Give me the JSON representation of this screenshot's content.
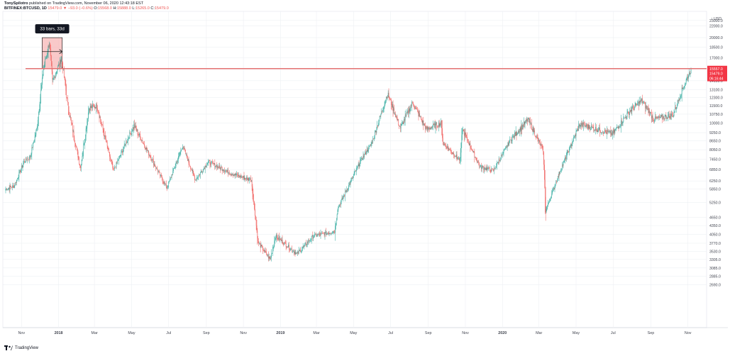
{
  "header": {
    "author": "TonySpilotro",
    "published": "published on TradingView.com, November 06, 2020 12:43:18 EST",
    "symbol": "BITFINEX:BTCUSD, 1D",
    "last": "15479.0",
    "change": "▼ −93.0 (−0.6%)",
    "o_label": "O:",
    "o_value": "15568.0",
    "h_label": "H:",
    "h_value": "15888.0",
    "l_label": "L:",
    "l_value": "15265.0",
    "c_label": "C:",
    "c_value": "15479.0"
  },
  "footer": {
    "brand": "TradingView"
  },
  "colors": {
    "up": "#26a69a",
    "down": "#ef5350",
    "grid": "#eef0f3",
    "resistance": "#e57373",
    "box_fill": "#f7b7b7",
    "box_border": "#222222",
    "tooltip_bg": "#131722",
    "badge_red": "#f23645"
  },
  "chart_data": {
    "type": "candlestick",
    "symbol": "BITFINEX:BTCUSD",
    "interval": "1D",
    "currency": "USD",
    "ylim": [
      1900,
      24200
    ],
    "y_ticks": [
      "23000.0",
      "22000.0",
      "20000.0",
      "18500.0",
      "17000.0",
      "15500.0",
      "14100.0",
      "13100.0",
      "12300.0",
      "11500.0",
      "10750.0",
      "10000.0",
      "9250.0",
      "8650.0",
      "8050.0",
      "7450.0",
      "6850.0",
      "6250.0",
      "5850.0",
      "5250.0",
      "4650.0",
      "4350.0",
      "4050.0",
      "3770.0",
      "3530.0",
      "3305.0",
      "3085.0",
      "2885.0",
      "2690.0"
    ],
    "x_labels": [
      {
        "label": "Nov",
        "date": "2017-11-01",
        "bold": false
      },
      {
        "label": "2018",
        "date": "2018-01-01",
        "bold": true
      },
      {
        "label": "Mar",
        "date": "2018-03-01",
        "bold": false
      },
      {
        "label": "May",
        "date": "2018-05-01",
        "bold": false
      },
      {
        "label": "Jul",
        "date": "2018-07-01",
        "bold": false
      },
      {
        "label": "Sep",
        "date": "2018-09-01",
        "bold": false
      },
      {
        "label": "Nov",
        "date": "2018-11-01",
        "bold": false
      },
      {
        "label": "2019",
        "date": "2019-01-01",
        "bold": true
      },
      {
        "label": "Mar",
        "date": "2019-03-01",
        "bold": false
      },
      {
        "label": "May",
        "date": "2019-05-01",
        "bold": false
      },
      {
        "label": "Jul",
        "date": "2019-07-01",
        "bold": false
      },
      {
        "label": "Sep",
        "date": "2019-09-01",
        "bold": false
      },
      {
        "label": "Nov",
        "date": "2019-11-01",
        "bold": false
      },
      {
        "label": "2020",
        "date": "2020-01-01",
        "bold": true
      },
      {
        "label": "Mar",
        "date": "2020-03-01",
        "bold": false
      },
      {
        "label": "May",
        "date": "2020-05-01",
        "bold": false
      },
      {
        "label": "Jul",
        "date": "2020-07-01",
        "bold": false
      },
      {
        "label": "Sep",
        "date": "2020-09-01",
        "bold": false
      },
      {
        "label": "Nov",
        "date": "2020-11-01",
        "bold": false
      }
    ],
    "price_path": [
      {
        "date": "2017-10-06",
        "price": 5850
      },
      {
        "date": "2017-10-20",
        "price": 6000
      },
      {
        "date": "2017-11-05",
        "price": 7300
      },
      {
        "date": "2017-11-15",
        "price": 7600
      },
      {
        "date": "2017-11-26",
        "price": 9500
      },
      {
        "date": "2017-12-07",
        "price": 15500
      },
      {
        "date": "2017-12-17",
        "price": 19300
      },
      {
        "date": "2017-12-22",
        "price": 14000
      },
      {
        "date": "2018-01-06",
        "price": 17000
      },
      {
        "date": "2018-01-17",
        "price": 11200
      },
      {
        "date": "2018-02-06",
        "price": 6950
      },
      {
        "date": "2018-02-20",
        "price": 11300
      },
      {
        "date": "2018-03-05",
        "price": 11500
      },
      {
        "date": "2018-04-01",
        "price": 6800
      },
      {
        "date": "2018-05-05",
        "price": 9800
      },
      {
        "date": "2018-06-28",
        "price": 5900
      },
      {
        "date": "2018-07-24",
        "price": 8300
      },
      {
        "date": "2018-08-14",
        "price": 6300
      },
      {
        "date": "2018-09-04",
        "price": 7300
      },
      {
        "date": "2018-10-15",
        "price": 6600
      },
      {
        "date": "2018-11-14",
        "price": 6300
      },
      {
        "date": "2018-11-25",
        "price": 3800
      },
      {
        "date": "2018-12-15",
        "price": 3300
      },
      {
        "date": "2018-12-24",
        "price": 4000
      },
      {
        "date": "2019-01-28",
        "price": 3450
      },
      {
        "date": "2019-02-24",
        "price": 4000
      },
      {
        "date": "2019-03-31",
        "price": 4150
      },
      {
        "date": "2019-04-05",
        "price": 5000
      },
      {
        "date": "2019-05-12",
        "price": 7300
      },
      {
        "date": "2019-05-31",
        "price": 8500
      },
      {
        "date": "2019-06-26",
        "price": 12700
      },
      {
        "date": "2019-07-17",
        "price": 9600
      },
      {
        "date": "2019-08-06",
        "price": 11800
      },
      {
        "date": "2019-08-29",
        "price": 9500
      },
      {
        "date": "2019-09-22",
        "price": 10000
      },
      {
        "date": "2019-09-25",
        "price": 8500
      },
      {
        "date": "2019-10-23",
        "price": 7400
      },
      {
        "date": "2019-10-27",
        "price": 9500
      },
      {
        "date": "2019-11-25",
        "price": 7000
      },
      {
        "date": "2019-12-17",
        "price": 6800
      },
      {
        "date": "2020-01-14",
        "price": 8700
      },
      {
        "date": "2020-02-12",
        "price": 10300
      },
      {
        "date": "2020-03-08",
        "price": 8000
      },
      {
        "date": "2020-03-12",
        "price": 4900
      },
      {
        "date": "2020-04-05",
        "price": 6800
      },
      {
        "date": "2020-05-07",
        "price": 9900
      },
      {
        "date": "2020-06-30",
        "price": 9150
      },
      {
        "date": "2020-07-28",
        "price": 11000
      },
      {
        "date": "2020-08-17",
        "price": 12000
      },
      {
        "date": "2020-09-06",
        "price": 10300
      },
      {
        "date": "2020-10-08",
        "price": 10700
      },
      {
        "date": "2020-10-21",
        "price": 12900
      },
      {
        "date": "2020-11-06",
        "price": 15479
      }
    ],
    "resistance_level": {
      "price": 15557,
      "label": "15557.0"
    },
    "current_price": {
      "price": 15479,
      "label": "15479.0"
    },
    "countdown": "06:16:44",
    "measure": {
      "label": "33 bars, 33d",
      "start": "2017-12-05",
      "end": "2018-01-07",
      "price_low": 15557,
      "price_high": 20000
    },
    "axis_unit_label": "USD"
  }
}
